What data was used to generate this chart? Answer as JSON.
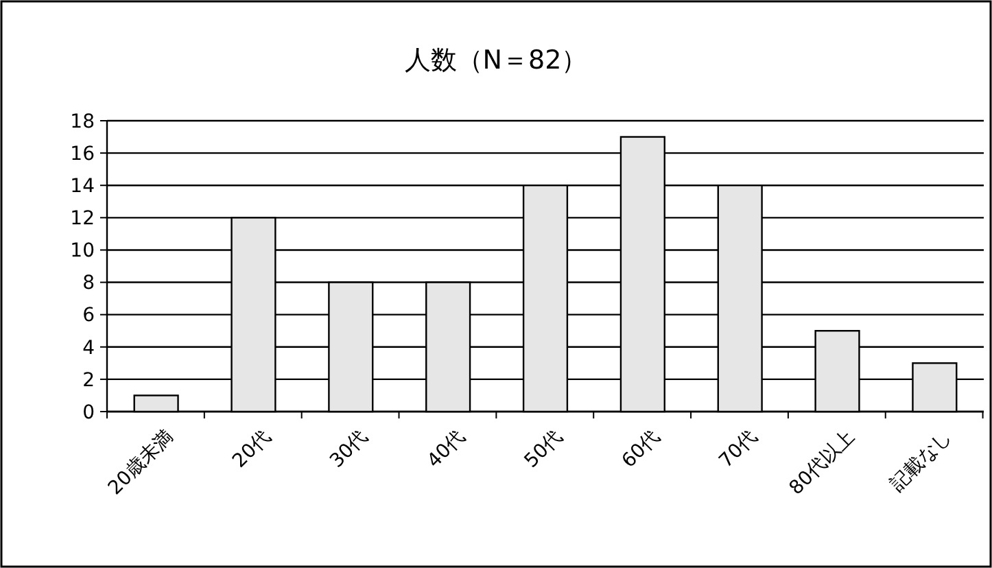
{
  "chart_data": {
    "type": "bar",
    "title": "人数（N＝82）",
    "categories": [
      "20歳未満",
      "20代",
      "30代",
      "40代",
      "50代",
      "60代",
      "70代",
      "80代以上",
      "記載なし"
    ],
    "values": [
      1,
      12,
      8,
      8,
      14,
      17,
      14,
      5,
      3
    ],
    "color": "#e6e6e6",
    "ylim": [
      0,
      18
    ],
    "yticks": [
      0,
      2,
      4,
      6,
      8,
      10,
      12,
      14,
      16,
      18
    ],
    "grid": "y"
  }
}
